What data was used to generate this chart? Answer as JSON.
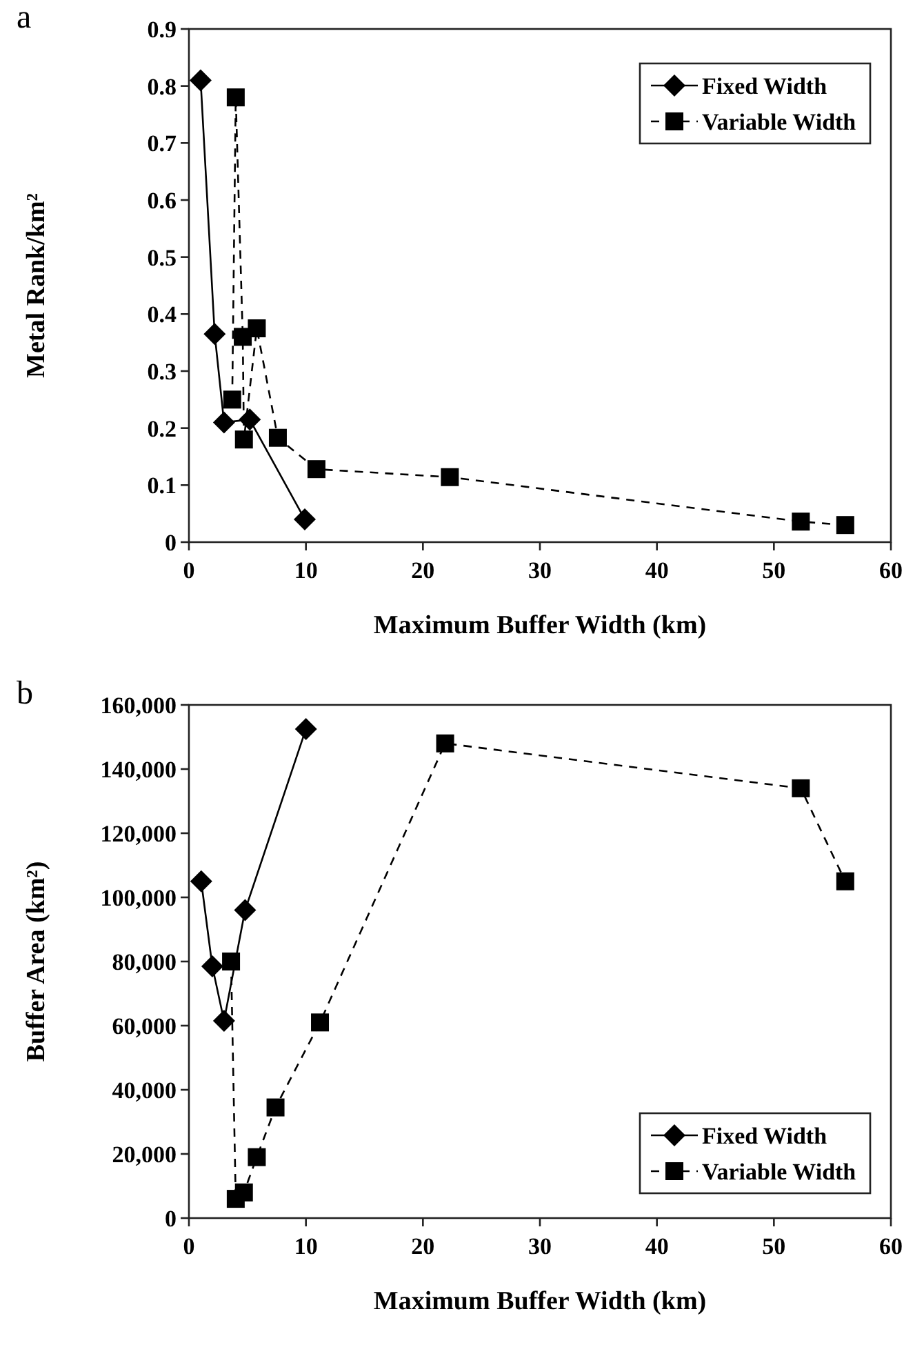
{
  "chart_data": [
    {
      "type": "line",
      "title": "a",
      "xlabel": "Maximum Buffer Width (km)",
      "ylabel": "Metal Rank/km²",
      "xlim": [
        0,
        60
      ],
      "xticks": [
        0,
        10,
        20,
        30,
        40,
        50,
        60
      ],
      "ylim": [
        0,
        0.9
      ],
      "yticks": [
        0,
        0.1,
        0.2,
        0.3,
        0.4,
        0.5,
        0.6,
        0.7,
        0.8,
        0.9
      ],
      "grid": false,
      "legend": "top right",
      "series": [
        {
          "name": "Fixed Width",
          "color": "#000000",
          "marker": "diamond",
          "line_style": "solid",
          "x": [
            1.0,
            2.2,
            3.0,
            5.2,
            9.9
          ],
          "values": [
            0.81,
            0.365,
            0.21,
            0.215,
            0.04
          ]
        },
        {
          "name": "Variable Width",
          "color": "#000000",
          "marker": "square",
          "line_style": "dashed",
          "x": [
            3.7,
            4.0,
            4.6,
            4.7,
            5.8,
            7.6,
            10.9,
            22.3,
            52.3,
            56.1
          ],
          "values": [
            0.25,
            0.78,
            0.36,
            0.18,
            0.375,
            0.183,
            0.128,
            0.114,
            0.036,
            0.03
          ]
        }
      ]
    },
    {
      "type": "line",
      "title": "b",
      "xlabel": "Maximum Buffer Width (km)",
      "ylabel": "Buffer Area (km²)",
      "xlim": [
        0,
        60
      ],
      "xticks": [
        0,
        10,
        20,
        30,
        40,
        50,
        60
      ],
      "ylim": [
        0,
        160000
      ],
      "yticks": [
        0,
        {
          "value": 20000,
          "label": "20,000"
        },
        {
          "value": 40000,
          "label": "40,000"
        },
        {
          "value": 60000,
          "label": "60,000"
        },
        {
          "value": 80000,
          "label": "80,000"
        },
        {
          "value": 100000,
          "label": "100,000"
        },
        {
          "value": 120000,
          "label": "120,000"
        },
        {
          "value": 140000,
          "label": "140,000"
        },
        {
          "value": 160000,
          "label": "160,000"
        }
      ],
      "grid": false,
      "legend": "bottom right",
      "series": [
        {
          "name": "Fixed Width",
          "color": "#000000",
          "marker": "diamond",
          "line_style": "solid",
          "x": [
            1.05,
            2.0,
            3.0,
            4.8,
            10.0
          ],
          "values": [
            105000,
            78500,
            61500,
            96000,
            152500
          ]
        },
        {
          "name": "Variable Width",
          "color": "#000000",
          "marker": "square",
          "line_style": "dashed",
          "x": [
            3.6,
            4.0,
            4.7,
            5.8,
            7.4,
            11.2,
            21.9,
            52.3,
            56.1
          ],
          "values": [
            80000,
            6000,
            8000,
            19000,
            34500,
            61000,
            148000,
            134000,
            105000
          ]
        }
      ]
    }
  ]
}
